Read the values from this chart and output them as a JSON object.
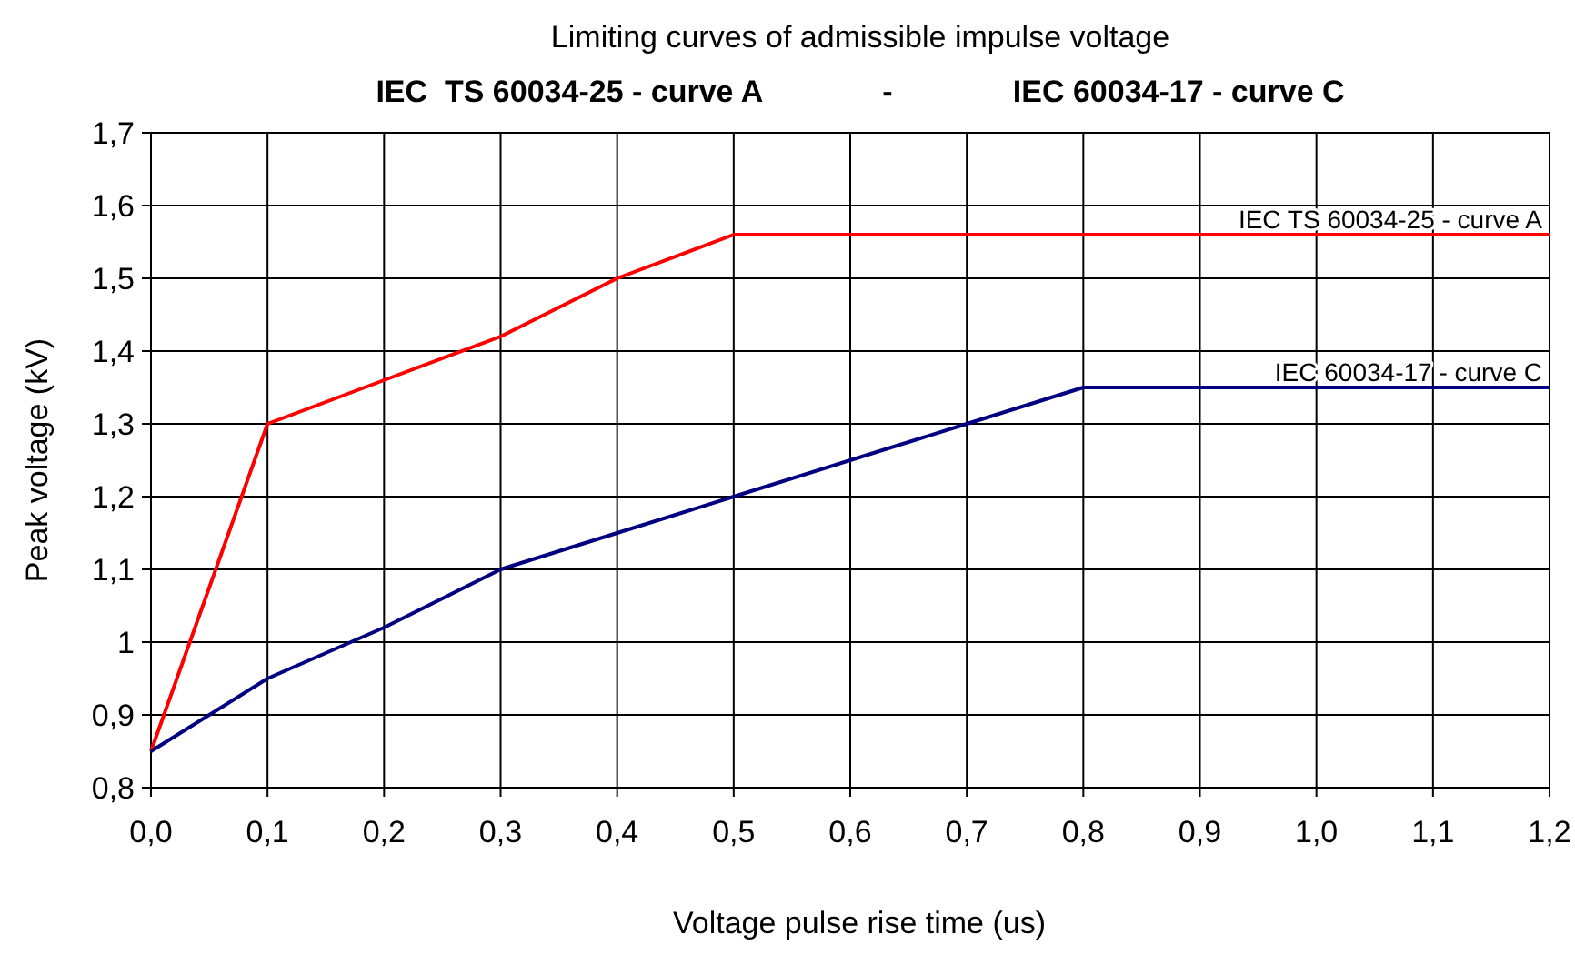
{
  "chart_data": {
    "type": "line",
    "title": "Limiting curves of admissible impulse voltage",
    "subtitle": "IEC  TS 60034-25 - curve A              -              IEC 60034-17 - curve C",
    "xlabel": "Voltage pulse rise time (us)",
    "ylabel": "Peak voltage (kV)",
    "series": [
      {
        "name": "IEC  TS 60034-25 - curve A",
        "color": "#ff0000",
        "x": [
          0,
          0.1,
          0.2,
          0.3,
          0.4,
          0.5,
          1.2
        ],
        "values": [
          0.85,
          1.3,
          1.36,
          1.42,
          1.5,
          1.56,
          1.56
        ]
      },
      {
        "name": "IEC  60034-17 - curve C",
        "color": "#000080",
        "x": [
          0,
          0.1,
          0.2,
          0.3,
          0.4,
          0.5,
          0.6,
          0.7,
          0.8,
          1.2
        ],
        "values": [
          0.85,
          0.95,
          1.02,
          1.1,
          1.15,
          1.2,
          1.25,
          1.3,
          1.35,
          1.35
        ]
      }
    ],
    "xlim": [
      0,
      1.2
    ],
    "ylim": [
      0.8,
      1.7
    ],
    "xticks": [
      {
        "value": 0,
        "label": "0,0"
      },
      {
        "value": 0.1,
        "label": "0,1"
      },
      {
        "value": 0.2,
        "label": "0,2"
      },
      {
        "value": 0.3,
        "label": "0,3"
      },
      {
        "value": 0.4,
        "label": "0,4"
      },
      {
        "value": 0.5,
        "label": "0,5"
      },
      {
        "value": 0.6,
        "label": "0,6"
      },
      {
        "value": 0.7,
        "label": "0,7"
      },
      {
        "value": 0.8,
        "label": "0,8"
      },
      {
        "value": 0.9,
        "label": "0,9"
      },
      {
        "value": 1,
        "label": "1,0"
      },
      {
        "value": 1.1,
        "label": "1,1"
      },
      {
        "value": 1.2,
        "label": "1,2"
      }
    ],
    "yticks": [
      {
        "value": 0.8,
        "label": "0,8"
      },
      {
        "value": 0.9,
        "label": "0,9"
      },
      1,
      {
        "value": 1.1,
        "label": "1,1"
      },
      {
        "value": 1.2,
        "label": "1,2"
      },
      {
        "value": 1.3,
        "label": "1,3"
      },
      {
        "value": 1.4,
        "label": "1,4"
      },
      {
        "value": 1.5,
        "label": "1,5"
      },
      {
        "value": 1.6,
        "label": "1,6"
      },
      {
        "value": 1.7,
        "label": "1,7"
      }
    ],
    "grid": true,
    "marker": "none",
    "line_style": "solid"
  }
}
